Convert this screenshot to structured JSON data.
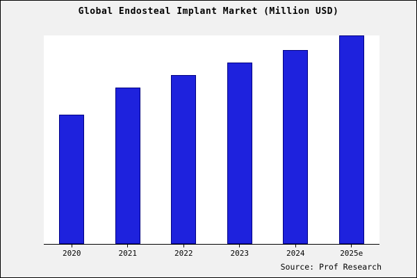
{
  "chart_data": {
    "type": "bar",
    "title": "Global Endosteal Implant Market (Million USD)",
    "categories": [
      "2020",
      "2021",
      "2022",
      "2023",
      "2024",
      "2025e"
    ],
    "values": [
      62,
      75,
      81,
      87,
      93,
      100
    ],
    "xlabel": "",
    "ylabel": "",
    "ylim": [
      0,
      100
    ],
    "grid": false,
    "legend": "none",
    "bar_color": "#1e22dd",
    "bar_edge_color": "#000080",
    "plot_background": "#ffffff",
    "page_background": "#f1f1f1",
    "source": "Source: Prof Research"
  }
}
